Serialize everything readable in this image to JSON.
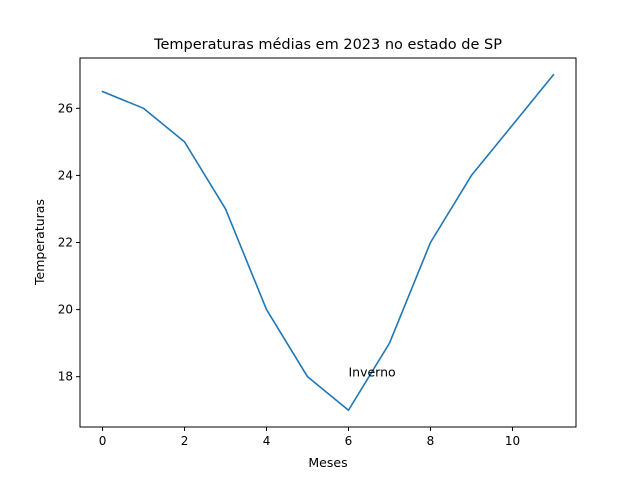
{
  "chart_data": {
    "type": "line",
    "title": "Temperaturas médias em 2023 no estado de SP",
    "xlabel": "Meses",
    "ylabel": "Temperaturas",
    "x": [
      0,
      1,
      2,
      3,
      4,
      5,
      6,
      7,
      8,
      9,
      10,
      11
    ],
    "series": [
      {
        "values": [
          26.5,
          26,
          25,
          23,
          20,
          18,
          17,
          19,
          22,
          24,
          25.5,
          27
        ]
      }
    ],
    "xlim": [
      -0.55,
      11.55
    ],
    "ylim": [
      16.5,
      27.5
    ],
    "xticks": [
      0,
      2,
      4,
      6,
      8,
      10
    ],
    "yticks": [
      18,
      20,
      22,
      24,
      26
    ],
    "annotations": [
      {
        "text": "Inverno",
        "x": 6,
        "y": 18
      }
    ],
    "grid": false,
    "colors": {
      "line": "#1f77b4"
    }
  }
}
